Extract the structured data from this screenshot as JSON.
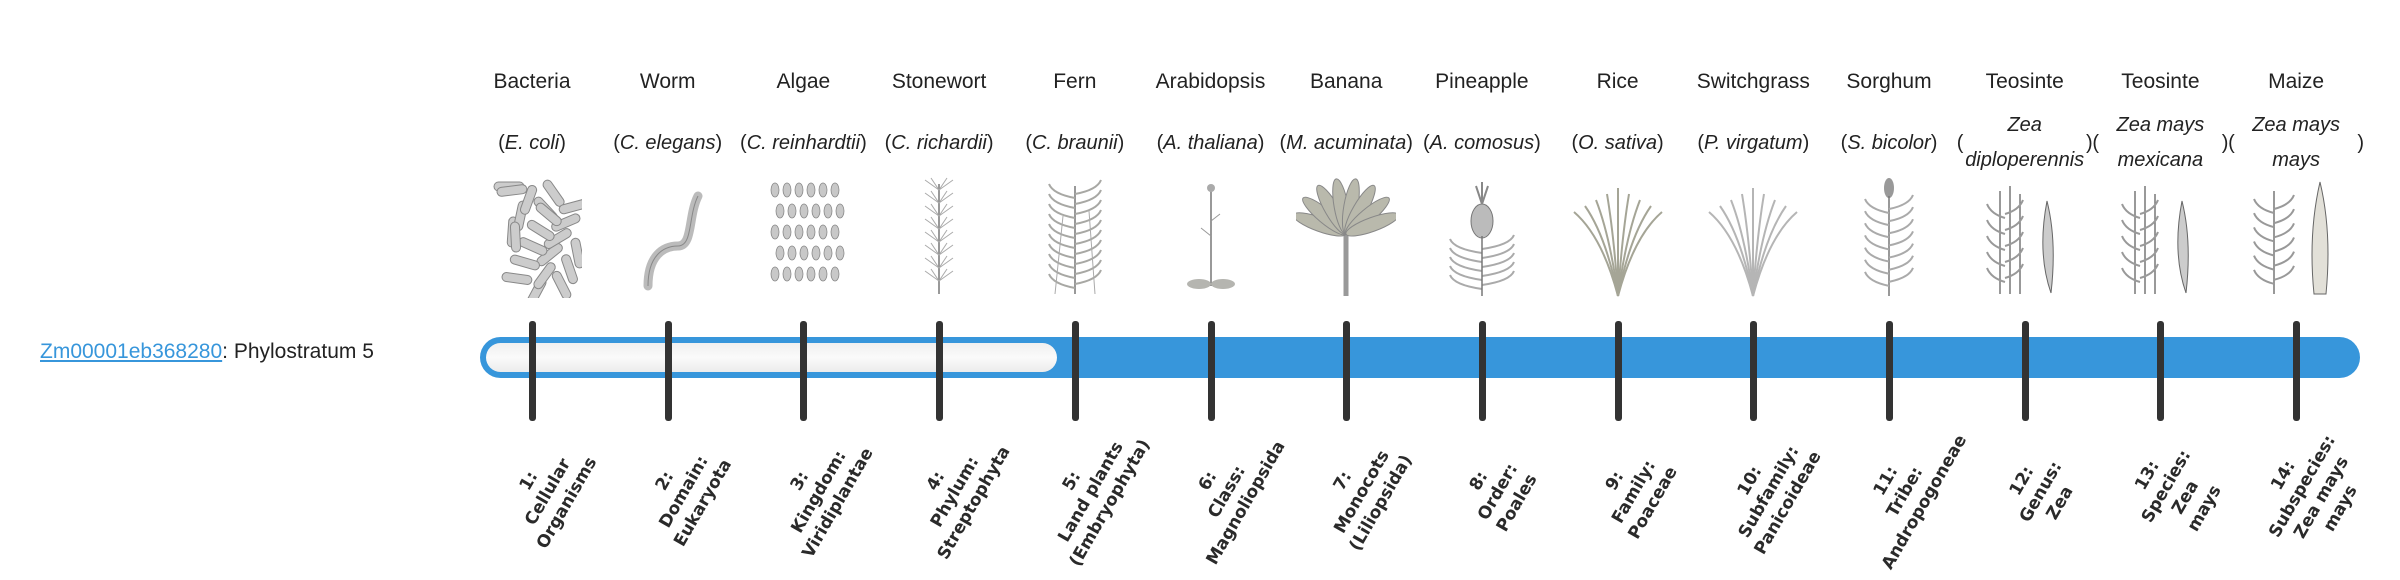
{
  "gene": {
    "id": "Zm00001eb368280",
    "suffix": ": Phylostratum 5"
  },
  "phylostratum": 5,
  "total_strata": 14,
  "colors": {
    "accent": "#3796db",
    "tick": "#333333",
    "empty": "#f4f4f4"
  },
  "organisms": [
    {
      "common": "Bacteria",
      "sci": "E. coli",
      "icon": "bacteria-illustration"
    },
    {
      "common": "Worm",
      "sci": "C. elegans",
      "icon": "worm-illustration"
    },
    {
      "common": "Algae",
      "sci": "C. reinhardtii",
      "icon": "algae-illustration"
    },
    {
      "common": "Stonewort",
      "sci": "C. richardii",
      "icon": "stonewort-illustration"
    },
    {
      "common": "Fern",
      "sci": "C. braunii",
      "icon": "fern-illustration"
    },
    {
      "common": "Arabidopsis",
      "sci": "A. thaliana",
      "icon": "arabidopsis-illustration"
    },
    {
      "common": "Banana",
      "sci": "M. acuminata",
      "icon": "banana-illustration"
    },
    {
      "common": "Pineapple",
      "sci": "A. comosus",
      "icon": "pineapple-illustration"
    },
    {
      "common": "Rice",
      "sci": "O. sativa",
      "icon": "rice-illustration"
    },
    {
      "common": "Switchgrass",
      "sci": "P. virgatum",
      "icon": "switchgrass-illustration"
    },
    {
      "common": "Sorghum",
      "sci": "S. bicolor",
      "icon": "sorghum-illustration"
    },
    {
      "common": "Teosinte",
      "sci": "Zea diploperennis",
      "icon": "teosinte-illustration"
    },
    {
      "common": "Teosinte",
      "sci": "Zea mays mexicana",
      "icon": "teosinte-illustration"
    },
    {
      "common": "Maize",
      "sci": "Zea mays mays",
      "icon": "maize-illustration"
    }
  ],
  "strata": [
    "1:\nCellular\nOrganisms",
    "2:\nDomain:\nEukaryota",
    "3:\nKingdom:\nViridiplantae",
    "4:\nPhylum:\nStreptophyta",
    "5:\nLand plants\n(Embryophyta)",
    "6:\nClass:\nMagnoliopsida",
    "7:\nMonocots\n(Liliopsida)",
    "8:\nOrder:\nPoales",
    "9:\nFamily:\nPoaceae",
    "10:\nSubfamily:\nPanicoideae",
    "11:\nTribe:\nAndropogoneae",
    "12:\nGenus:\nZea",
    "13:\nSpecies:\nZea\nmays",
    "14:\nSubspecies:\nZea mays\nmays"
  ]
}
